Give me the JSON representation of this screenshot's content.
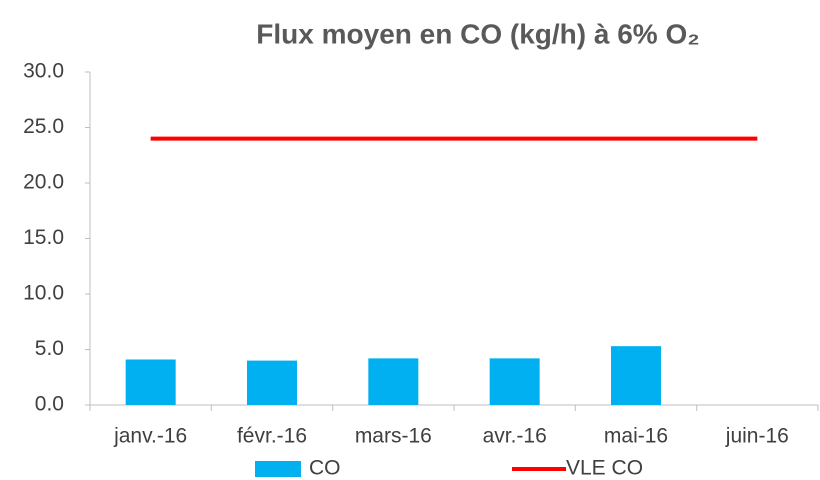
{
  "chart_data": {
    "type": "bar",
    "title": "Flux moyen en CO (kg/h) à 6% O₂",
    "categories": [
      "janv.-16",
      "févr.-16",
      "mars-16",
      "avr.-16",
      "mai-16",
      "juin-16"
    ],
    "series": [
      {
        "name": "CO",
        "type": "bar",
        "color": "#00b0f0",
        "values": [
          4.1,
          4.0,
          4.2,
          4.2,
          5.3,
          null
        ]
      },
      {
        "name": "VLE CO",
        "type": "line",
        "color": "#ff0000",
        "values": [
          24,
          24,
          24,
          24,
          24,
          24
        ]
      }
    ],
    "ylim": [
      0,
      30
    ],
    "yticks": [
      {
        "value": 0,
        "label": "0.0"
      },
      {
        "value": 5,
        "label": "5.0"
      },
      {
        "value": 10,
        "label": "10.0"
      },
      {
        "value": 15,
        "label": "15.0"
      },
      {
        "value": 20,
        "label": "20.0"
      },
      {
        "value": 25,
        "label": "25.0"
      },
      {
        "value": 30,
        "label": "30.0"
      }
    ],
    "grid": false,
    "legend": "bottom"
  }
}
